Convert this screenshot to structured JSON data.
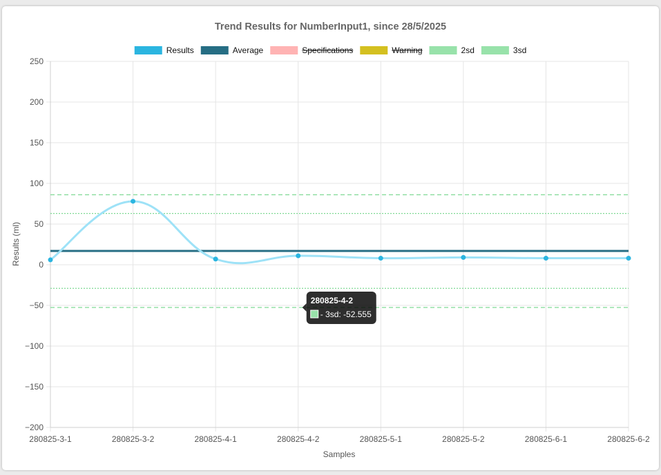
{
  "chart_data": {
    "type": "line",
    "title": "Trend Results for NumberInput1, since 28/5/2025",
    "xlabel": "Samples",
    "ylabel": "Results (ml)",
    "ylim": [
      -200,
      250
    ],
    "y_ticks": [
      250,
      200,
      150,
      100,
      50,
      0,
      -50,
      -100,
      -150,
      -200
    ],
    "categories": [
      "280825-3-1",
      "280825-3-2",
      "280825-4-1",
      "280825-4-2",
      "280825-5-1",
      "280825-5-2",
      "280825-6-1",
      "280825-6-2"
    ],
    "grid": true,
    "legend_position": "top",
    "legend": [
      {
        "label": "Results",
        "color": "#2bb5e0",
        "hidden": false
      },
      {
        "label": "Average",
        "color": "#266e84",
        "hidden": false
      },
      {
        "label": "Specifications",
        "color": "#ffb3b3",
        "hidden": true
      },
      {
        "label": "Warning",
        "color": "#d4c020",
        "hidden": true
      },
      {
        "label": "2sd",
        "color": "#98e2aa",
        "hidden": false
      },
      {
        "label": "3sd",
        "color": "#98e2aa",
        "hidden": false
      }
    ],
    "series": [
      {
        "name": "Results",
        "type": "line",
        "color": "#2bb5e0",
        "line_color": "#9ee2f7",
        "values": [
          6,
          78,
          7,
          11,
          8,
          9,
          8,
          8
        ]
      },
      {
        "name": "Average",
        "type": "line",
        "color": "#266e84",
        "values": [
          17,
          17,
          17,
          17,
          17,
          17,
          17,
          17
        ]
      }
    ],
    "bands": [
      {
        "name": "2sd",
        "upper": 63,
        "lower": -29,
        "dash": "2,2",
        "color": "#7fd994"
      },
      {
        "name": "3sd",
        "upper": 86,
        "lower": -52.555,
        "dash": "6,4",
        "color": "#7fd994"
      }
    ],
    "tooltip": {
      "category": "280825-4-2",
      "title": "280825-4-2",
      "label": "- 3sd: -52.555",
      "swatch_color": "#98e2aa"
    }
  }
}
